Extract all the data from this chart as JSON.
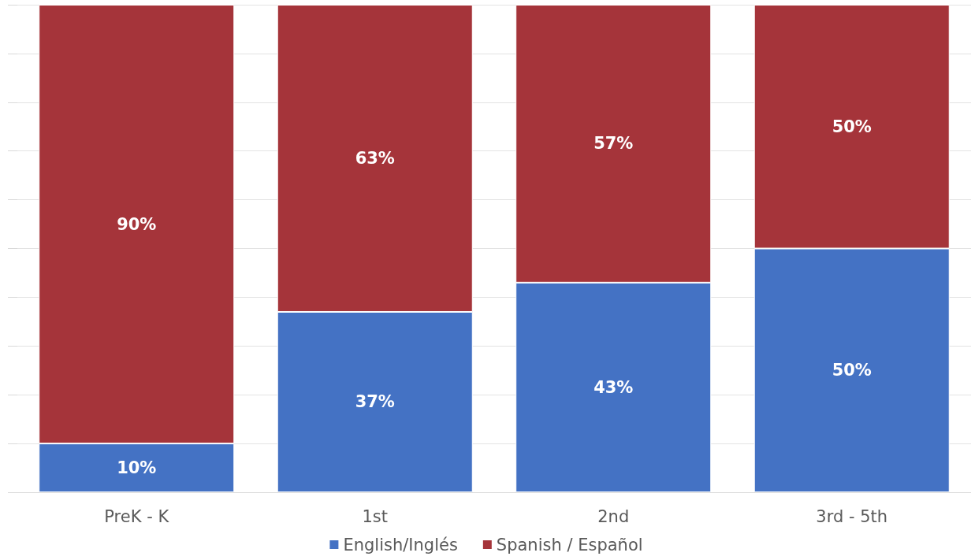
{
  "chart_data": {
    "type": "bar",
    "stacked": true,
    "categories": [
      "PreK - K",
      "1st",
      "2nd",
      "3rd - 5th"
    ],
    "series": [
      {
        "name": "English/Inglés",
        "color": "#4472c4",
        "values": [
          10,
          37,
          43,
          50
        ],
        "value_labels": [
          "10%",
          "37%",
          "43%",
          "50%"
        ]
      },
      {
        "name": "Spanish / Español",
        "color": "#a5343a",
        "values": [
          90,
          63,
          57,
          50
        ],
        "value_labels": [
          "90%",
          "63%",
          "57%",
          "50%"
        ]
      }
    ],
    "ylim": [
      0,
      100
    ],
    "yticks": [
      {
        "value": 0,
        "label": null
      },
      {
        "value": 10,
        "label": null
      },
      {
        "value": 20,
        "label": null
      },
      {
        "value": 30,
        "label": null
      },
      {
        "value": 40,
        "label": null
      },
      {
        "value": 50,
        "label": null
      },
      {
        "value": 60,
        "label": null
      },
      {
        "value": 70,
        "label": null
      },
      {
        "value": 80,
        "label": null
      },
      {
        "value": 90,
        "label": null
      },
      {
        "value": 100,
        "label": null
      }
    ],
    "tick_labels": "x",
    "grid": "y",
    "legend": "bottom"
  }
}
